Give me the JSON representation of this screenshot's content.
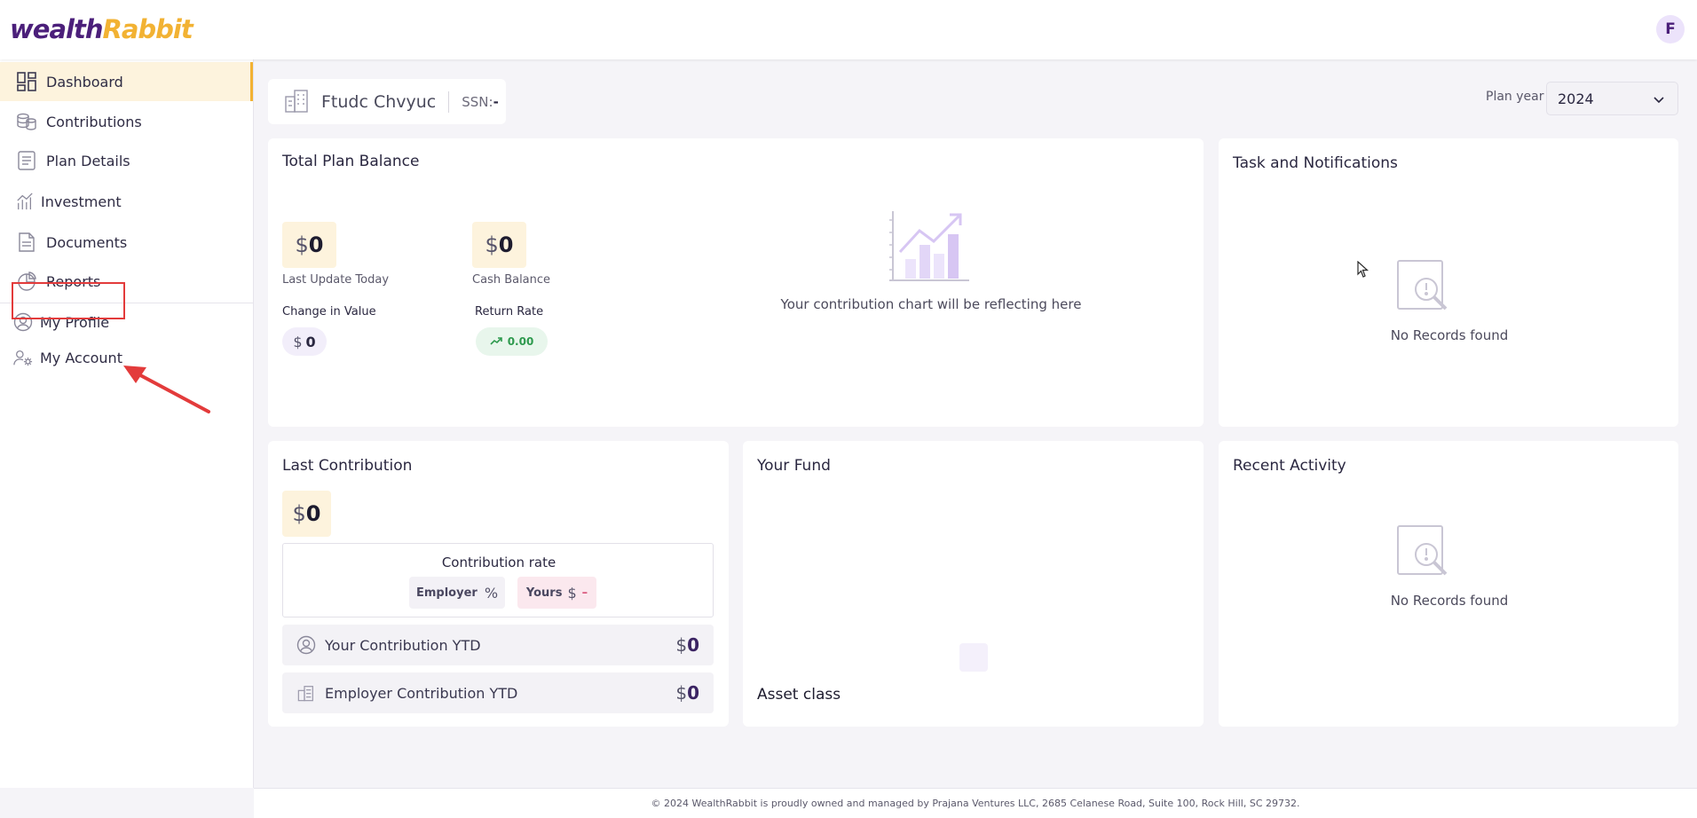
{
  "header": {
    "logo_part1": "wealth",
    "logo_part2": "Rabbit",
    "avatar_initial": "F"
  },
  "sidebar": {
    "items": [
      {
        "label": "Dashboard",
        "icon": "dashboard-icon",
        "active": true
      },
      {
        "label": "Contributions",
        "icon": "coins-icon"
      },
      {
        "label": "Plan Details",
        "icon": "document-list-icon"
      },
      {
        "label": "Investment",
        "icon": "growth-chart-icon"
      },
      {
        "label": "Documents",
        "icon": "file-icon"
      },
      {
        "label": "Reports",
        "icon": "pie-chart-icon"
      },
      {
        "label": "My Profile",
        "icon": "user-circle-icon"
      },
      {
        "label": "My Account",
        "icon": "user-gear-icon",
        "highlighted": true
      }
    ]
  },
  "user": {
    "name": "Ftudc Chvyuc",
    "ssn_label": "SSN:",
    "ssn_value": "-"
  },
  "plan_year": {
    "label": "Plan year",
    "value": "2024"
  },
  "total_plan_balance": {
    "title": "Total Plan Balance",
    "currency": "$",
    "last_update_value": "0",
    "last_update_label": "Last Update Today",
    "cash_balance_value": "0",
    "cash_balance_label": "Cash Balance",
    "change_label": "Change in Value",
    "change_value": "0",
    "return_label": "Return Rate",
    "return_value": "0.00",
    "chart_placeholder": "Your contribution chart will be reflecting here"
  },
  "tasks": {
    "title": "Task and Notifications",
    "empty": "No Records found"
  },
  "last_contribution": {
    "title": "Last Contribution",
    "currency": "$",
    "value": "0",
    "rate_title": "Contribution rate",
    "employer_label": "Employer",
    "employer_symbol": "%",
    "yours_label": "Yours",
    "yours_symbol": "$",
    "yours_value": "–",
    "your_ytd_label": "Your Contribution YTD",
    "your_ytd_value": "0",
    "employer_ytd_label": "Employer Contribution YTD",
    "employer_ytd_value": "0"
  },
  "your_fund": {
    "title": "Your Fund",
    "asset_class": "Asset class"
  },
  "recent_activity": {
    "title": "Recent Activity",
    "empty": "No Records found"
  },
  "footer": {
    "text": "© 2024 WealthRabbit is proudly owned and managed by Prajana Ventures LLC, 2685 Celanese Road, Suite 100, Rock Hill, SC 29732."
  },
  "colors": {
    "brand_purple": "#4b1f7a",
    "brand_gold": "#f2b233",
    "highlight_red": "#e33b3b"
  }
}
